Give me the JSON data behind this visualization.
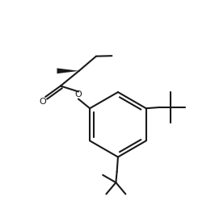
{
  "bg_color": "#ffffff",
  "line_color": "#1a1a1a",
  "line_width": 1.5,
  "fig_width": 2.66,
  "fig_height": 2.49,
  "dpi": 100,
  "xlim": [
    0,
    10
  ],
  "ylim": [
    0,
    9.5
  ]
}
